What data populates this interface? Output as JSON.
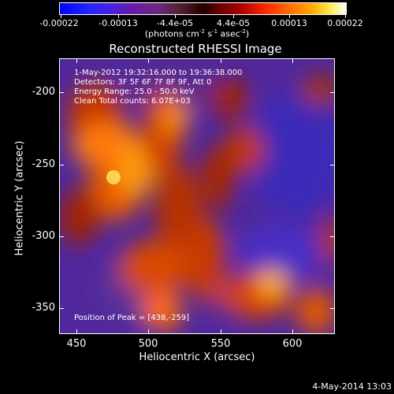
{
  "colorbar": {
    "tick_labels": [
      "-0.00022",
      "-0.00013",
      "-4.4e-05",
      "4.4e-05",
      "0.00013",
      "0.00022"
    ],
    "units_text": "(photons cm",
    "units_exp1": "-2",
    "units_mid": " s",
    "units_exp2": "-1",
    "units_mid2": " asec",
    "units_exp3": "-2",
    "units_end": ")"
  },
  "plot": {
    "title": "Reconstructed RHESSI Image",
    "annotations": {
      "time_range": "1-May-2012 19:32:16.000 to 19:36:38.000",
      "detectors": "Detectors: 3F 5F 6F 7F 8F 9F, Att 0",
      "energy_range": "Energy Range: 25.0 - 50.0 keV",
      "method_counts": "Clean    Total counts: 6.07E+03",
      "peak_position": "Position of Peak = [438,-259]"
    },
    "x_axis_title": "Heliocentric X (arcsec)",
    "y_axis_title": "Heliocentric Y (arcsec)",
    "x_tick_labels": [
      "450",
      "500",
      "550",
      "600"
    ],
    "y_tick_labels": [
      "-200",
      "-250",
      "-300",
      "-350"
    ]
  },
  "footer": {
    "date": "4-May-2014 13:03"
  }
}
